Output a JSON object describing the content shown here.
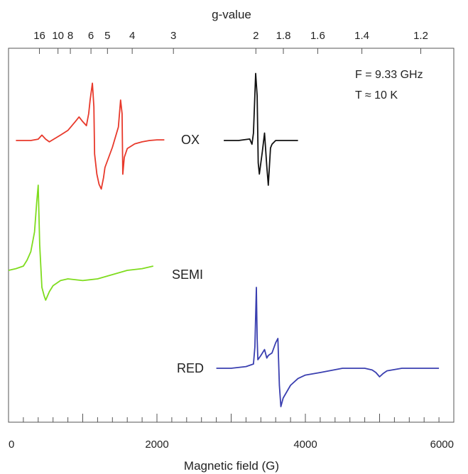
{
  "chart_data": {
    "type": "line",
    "xlabel": "Magnetic field (G)",
    "top_axis_label": "g-value",
    "xlim": [
      0,
      6000
    ],
    "x_ticks": [
      0,
      2000,
      4000,
      6000
    ],
    "x_tick_labels": [
      "0",
      "2000",
      "4000",
      "6000"
    ],
    "g_ticks": [
      {
        "g": 16,
        "label": "16"
      },
      {
        "g": 10,
        "label": "10"
      },
      {
        "g": 8,
        "label": "8"
      },
      {
        "g": 6,
        "label": "6"
      },
      {
        "g": 5,
        "label": "5"
      },
      {
        "g": 4,
        "label": "4"
      },
      {
        "g": 3,
        "label": "3"
      },
      {
        "g": 2,
        "label": "2"
      },
      {
        "g": 1.8,
        "label": "1.8"
      },
      {
        "g": 1.6,
        "label": "1.6"
      },
      {
        "g": 1.4,
        "label": "1.4"
      },
      {
        "g": 1.2,
        "label": "1.2"
      }
    ],
    "conditions": [
      "F = 9.33 GHz",
      "T ≈ 10 K"
    ],
    "grid": false,
    "series": [
      {
        "name": "OX",
        "color": "#e8392b",
        "x": [
          100,
          300,
          400,
          450,
          500,
          550,
          700,
          800,
          900,
          950,
          1000,
          1050,
          1080,
          1100,
          1130,
          1150,
          1160,
          1190,
          1220,
          1250,
          1280,
          1300,
          1400,
          1480,
          1510,
          1530,
          1540,
          1560,
          1600,
          1700,
          1800,
          1900,
          2000,
          2100
        ],
        "y": [
          0,
          0,
          0.02,
          0.08,
          0.02,
          -0.02,
          0.08,
          0.15,
          0.28,
          0.35,
          0.28,
          0.22,
          0.4,
          0.6,
          0.85,
          0.5,
          -0.2,
          -0.5,
          -0.65,
          -0.72,
          -0.55,
          -0.4,
          -0.1,
          0.2,
          0.6,
          0.4,
          -0.5,
          -0.25,
          -0.12,
          -0.05,
          -0.02,
          0,
          0.01,
          0.01
        ]
      },
      {
        "name": "OX",
        "color": "#111111",
        "x": [
          2900,
          3100,
          3250,
          3280,
          3300,
          3330,
          3350,
          3365,
          3380,
          3400,
          3420,
          3450,
          3480,
          3500,
          3530,
          3550,
          3600,
          3700,
          3800,
          3900
        ],
        "y": [
          0,
          0,
          0.02,
          -0.05,
          0.1,
          0.9,
          0.6,
          -0.3,
          -0.45,
          -0.3,
          -0.15,
          0.1,
          -0.35,
          -0.6,
          -0.1,
          -0.05,
          0,
          0,
          0,
          0
        ]
      },
      {
        "name": "SEMI",
        "color": "#7fdc1e",
        "x": [
          0,
          100,
          200,
          250,
          300,
          350,
          380,
          400,
          420,
          450,
          480,
          500,
          550,
          600,
          700,
          800,
          1000,
          1200,
          1400,
          1600,
          1800,
          1950
        ],
        "y": [
          0,
          0.02,
          0.05,
          0.12,
          0.22,
          0.45,
          0.8,
          1.0,
          0.3,
          -0.2,
          -0.3,
          -0.35,
          -0.25,
          -0.18,
          -0.12,
          -0.1,
          -0.12,
          -0.1,
          -0.05,
          0,
          0.02,
          0.05
        ]
      },
      {
        "name": "RED",
        "color": "#3a3fb0",
        "x": [
          2800,
          3000,
          3200,
          3300,
          3320,
          3340,
          3350,
          3360,
          3400,
          3450,
          3480,
          3500,
          3550,
          3600,
          3630,
          3650,
          3670,
          3700,
          3800,
          3900,
          4000,
          4200,
          4500,
          4800,
          4900,
          4950,
          5000,
          5050,
          5100,
          5300,
          5500,
          5800
        ],
        "y": [
          0,
          0,
          0.02,
          0.05,
          0.25,
          0.95,
          0.35,
          0.1,
          0.15,
          0.22,
          0.12,
          0.15,
          0.18,
          0.3,
          0.35,
          -0.2,
          -0.45,
          -0.35,
          -0.2,
          -0.12,
          -0.08,
          -0.05,
          0,
          0,
          -0.02,
          -0.05,
          -0.1,
          -0.06,
          -0.03,
          0,
          0,
          0
        ]
      }
    ]
  }
}
